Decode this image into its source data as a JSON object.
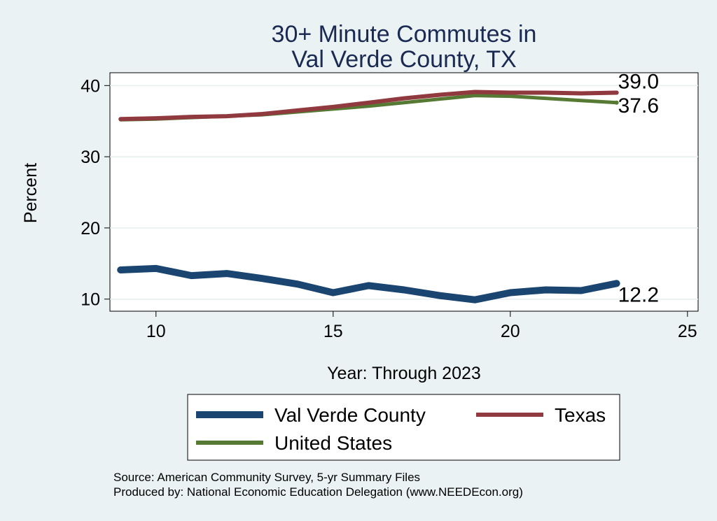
{
  "chart_data": {
    "type": "line",
    "title_lines": [
      "30+ Minute Commutes in",
      "Val Verde County, TX"
    ],
    "xlabel": "Year: Through 2023",
    "ylabel": "Percent",
    "xlim": [
      8.7,
      25.3
    ],
    "ylim": [
      8.3,
      41.8
    ],
    "xticks": [
      10,
      15,
      20,
      25
    ],
    "yticks": [
      10,
      20,
      30,
      40
    ],
    "grid": true,
    "legend_position": "bottom",
    "x": [
      9,
      10,
      11,
      12,
      13,
      14,
      15,
      16,
      17,
      18,
      19,
      20,
      21,
      22,
      23
    ],
    "series": [
      {
        "name": "Val Verde County",
        "color": "#1b4571",
        "values": [
          14.1,
          14.3,
          13.3,
          13.6,
          12.9,
          12.1,
          10.9,
          11.9,
          11.3,
          10.5,
          9.9,
          10.9,
          11.3,
          11.2,
          12.2
        ],
        "end_label": "12.2"
      },
      {
        "name": "Texas",
        "color": "#903a3f",
        "values": [
          35.3,
          35.4,
          35.6,
          35.7,
          36.0,
          36.5,
          37.0,
          37.6,
          38.2,
          38.7,
          39.1,
          39.0,
          39.0,
          38.9,
          39.0
        ],
        "end_label": "39.0"
      },
      {
        "name": "United States",
        "color": "#567a33",
        "values": [
          35.2,
          35.3,
          35.5,
          35.7,
          35.9,
          36.3,
          36.7,
          37.1,
          37.6,
          38.1,
          38.6,
          38.5,
          38.2,
          37.9,
          37.6
        ],
        "end_label": "37.6"
      }
    ],
    "legend": [
      "Val Verde County",
      "Texas",
      "United States"
    ]
  },
  "notes": {
    "source": "Source: American Community Survey, 5-yr Summary Files",
    "produced": "Produced by: National Economic Education Delegation (www.NEEDEcon.org)"
  }
}
